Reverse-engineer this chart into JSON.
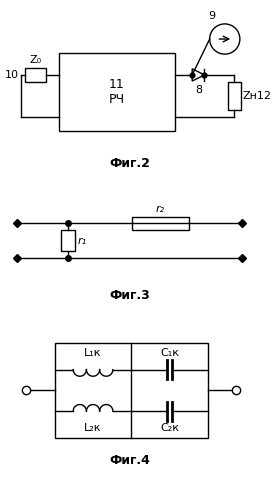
{
  "bg_color": "#ffffff",
  "line_color": "#000000",
  "fig2_caption": "Фиг.2",
  "fig3_caption": "Фиг.3",
  "fig4_caption": "Фиг.4",
  "rf_label": "11\nРЧ",
  "z0_label": "Z₀",
  "z0_num": "10",
  "zh_label": "Zн",
  "zh_num": "12",
  "diode_num": "8",
  "gen_num": "9",
  "r1_label": "r₁",
  "r2_label": "r₂",
  "l1_label": "L₁к",
  "l2_label": "L₂к",
  "c1_label": "C₁к",
  "c2_label": "C₂к"
}
